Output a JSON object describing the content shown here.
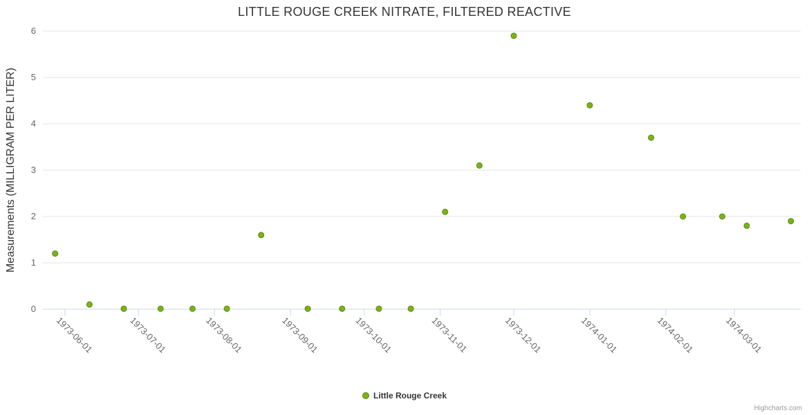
{
  "title": "LITTLE ROUGE CREEK NITRATE, FILTERED REACTIVE",
  "credits_label": "Highcharts.com",
  "legend": {
    "label": "Little Rouge Creek"
  },
  "colors": {
    "point_fill": "#7ab317",
    "point_stroke": "#5c8a0e",
    "grid": "#e6e6e6",
    "axis_line": "#ccd6eb",
    "tick": "#ccd6eb",
    "axis_label": "#666666",
    "title_text": "#333333"
  },
  "chart_data": {
    "type": "scatter",
    "title": "LITTLE ROUGE CREEK NITRATE, FILTERED REACTIVE",
    "xlabel": "",
    "ylabel": "Measurements (MILLIGRAM PER LITER)",
    "ylim": [
      0,
      6
    ],
    "yticks": [
      0,
      1,
      2,
      3,
      4,
      5,
      6
    ],
    "grid": "horizontal",
    "legend_position": "bottom-center",
    "xrange": [
      "1973-05-23",
      "1974-03-28"
    ],
    "xtick_labels": [
      "1973-06-01",
      "1973-07-01",
      "1973-08-01",
      "1973-09-01",
      "1973-10-01",
      "1973-11-01",
      "1973-12-01",
      "1974-01-01",
      "1974-02-01",
      "1974-03-01"
    ],
    "series": [
      {
        "name": "Little Rouge Creek",
        "points": [
          {
            "x": "1973-05-28",
            "y": 1.2
          },
          {
            "x": "1973-06-11",
            "y": 0.1
          },
          {
            "x": "1973-06-25",
            "y": 0.01
          },
          {
            "x": "1973-07-10",
            "y": 0.01
          },
          {
            "x": "1973-07-23",
            "y": 0.01
          },
          {
            "x": "1973-08-06",
            "y": 0.01
          },
          {
            "x": "1973-08-20",
            "y": 1.6
          },
          {
            "x": "1973-09-08",
            "y": 0.01
          },
          {
            "x": "1973-09-22",
            "y": 0.01
          },
          {
            "x": "1973-10-07",
            "y": 0.01
          },
          {
            "x": "1973-10-20",
            "y": 0.01
          },
          {
            "x": "1973-11-03",
            "y": 2.1
          },
          {
            "x": "1973-11-17",
            "y": 3.1
          },
          {
            "x": "1973-12-01",
            "y": 5.9
          },
          {
            "x": "1974-01-01",
            "y": 4.4
          },
          {
            "x": "1974-01-26",
            "y": 3.7
          },
          {
            "x": "1974-02-08",
            "y": 2.0
          },
          {
            "x": "1974-02-24",
            "y": 2.0
          },
          {
            "x": "1974-03-06",
            "y": 1.8
          },
          {
            "x": "1974-03-24",
            "y": 1.9
          }
        ]
      }
    ]
  }
}
